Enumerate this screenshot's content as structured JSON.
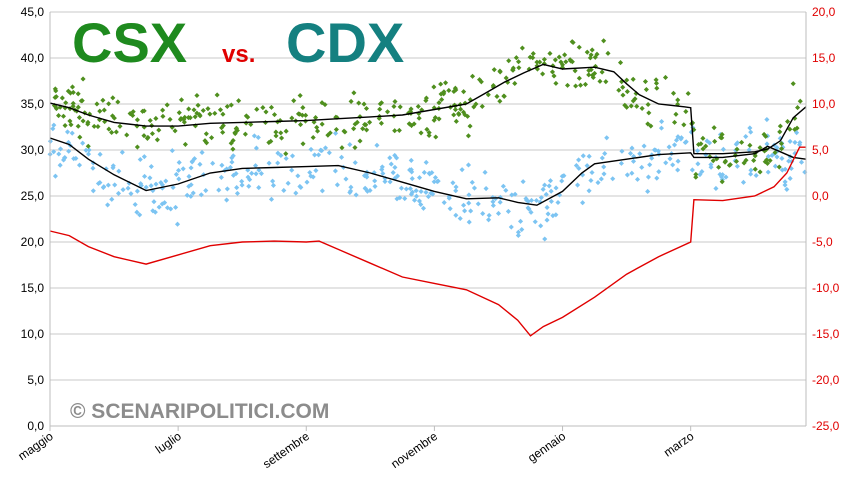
{
  "chart_data": {
    "type": "scatter",
    "title_parts": {
      "csx": "CSX",
      "vs": "vs.",
      "cdx": "CDX"
    },
    "watermark": "© SCENARIPOLITICI.COM",
    "x_ticks": [
      "maggio",
      "luglio",
      "settembre",
      "novembre",
      "gennaio",
      "marzo"
    ],
    "y_left": {
      "min": 0,
      "max": 45,
      "step": 5,
      "ticks": [
        "0,0",
        "5,0",
        "10,0",
        "15,0",
        "20,0",
        "25,0",
        "30,0",
        "35,0",
        "40,0",
        "45,0"
      ]
    },
    "y_right": {
      "min": -25,
      "max": 20,
      "step": 5,
      "ticks": [
        "-25,0",
        "-20,0",
        "-15,0",
        "-10,0",
        "-5,0",
        "0,0",
        "5,0",
        "10,0",
        "15,0",
        "20,0"
      ]
    },
    "grid": true,
    "legend": "none",
    "colors": {
      "csx": "#4f8f1e",
      "cdx": "#7cc4f2",
      "trend": "#000000",
      "diff": "#e00000",
      "grid": "#c8c8c8"
    },
    "x_range": [
      0,
      11.8
    ],
    "series": [
      {
        "kind": "trend",
        "axis": "left",
        "points": [
          [
            0,
            35.1
          ],
          [
            0.3,
            34.6
          ],
          [
            0.6,
            33.8
          ],
          [
            1.0,
            33.0
          ],
          [
            1.5,
            32.6
          ],
          [
            2.0,
            32.6
          ],
          [
            2.5,
            32.9
          ],
          [
            3.0,
            33.0
          ],
          [
            3.5,
            33.1
          ],
          [
            4.0,
            33.2
          ],
          [
            4.5,
            33.4
          ],
          [
            5.0,
            33.6
          ],
          [
            5.5,
            33.8
          ],
          [
            6.0,
            34.4
          ],
          [
            6.5,
            35.0
          ],
          [
            6.8,
            36.2
          ],
          [
            7.1,
            37.4
          ],
          [
            7.4,
            38.4
          ],
          [
            7.7,
            39.3
          ],
          [
            8.0,
            38.8
          ],
          [
            8.5,
            39.0
          ],
          [
            8.8,
            38.5
          ],
          [
            9.0,
            37.2
          ],
          [
            9.2,
            36.0
          ],
          [
            9.5,
            35.0
          ],
          [
            9.9,
            34.7
          ],
          [
            10.0,
            34.6
          ],
          [
            10.05,
            29.6
          ],
          [
            10.5,
            29.6
          ],
          [
            11.0,
            29.8
          ],
          [
            11.2,
            30.1
          ],
          [
            11.4,
            31.0
          ],
          [
            11.6,
            33.5
          ],
          [
            11.8,
            34.7
          ]
        ]
      },
      {
        "kind": "trend",
        "axis": "left",
        "points": [
          [
            0,
            31.3
          ],
          [
            0.3,
            30.6
          ],
          [
            0.6,
            29.0
          ],
          [
            1.0,
            27.3
          ],
          [
            1.5,
            25.6
          ],
          [
            2.0,
            26.3
          ],
          [
            2.5,
            27.5
          ],
          [
            3.0,
            28.0
          ],
          [
            3.5,
            28.1
          ],
          [
            4.0,
            28.2
          ],
          [
            4.5,
            28.3
          ],
          [
            5.0,
            27.5
          ],
          [
            5.5,
            26.5
          ],
          [
            6.0,
            25.5
          ],
          [
            6.5,
            24.7
          ],
          [
            7.0,
            24.8
          ],
          [
            7.3,
            24.3
          ],
          [
            7.6,
            24.0
          ],
          [
            8.0,
            25.5
          ],
          [
            8.3,
            27.5
          ],
          [
            8.5,
            28.5
          ],
          [
            9.0,
            29.0
          ],
          [
            9.5,
            29.5
          ],
          [
            10.0,
            29.7
          ],
          [
            10.05,
            29.2
          ],
          [
            10.5,
            29.2
          ],
          [
            11.0,
            29.6
          ],
          [
            11.2,
            30.4
          ],
          [
            11.4,
            29.8
          ],
          [
            11.6,
            29.2
          ],
          [
            11.8,
            29.0
          ]
        ]
      },
      {
        "kind": "diff",
        "axis": "right",
        "points": [
          [
            0,
            -3.8
          ],
          [
            0.3,
            -4.3
          ],
          [
            0.6,
            -5.5
          ],
          [
            1.0,
            -6.6
          ],
          [
            1.5,
            -7.4
          ],
          [
            2.0,
            -6.4
          ],
          [
            2.5,
            -5.4
          ],
          [
            3.0,
            -5.0
          ],
          [
            3.5,
            -4.9
          ],
          [
            4.0,
            -5.0
          ],
          [
            4.2,
            -4.9
          ],
          [
            4.5,
            -5.8
          ],
          [
            5.0,
            -7.3
          ],
          [
            5.5,
            -8.8
          ],
          [
            6.0,
            -9.5
          ],
          [
            6.5,
            -10.2
          ],
          [
            7.0,
            -11.8
          ],
          [
            7.3,
            -13.5
          ],
          [
            7.5,
            -15.2
          ],
          [
            7.7,
            -14.2
          ],
          [
            8.0,
            -13.2
          ],
          [
            8.5,
            -11.0
          ],
          [
            9.0,
            -8.5
          ],
          [
            9.5,
            -6.6
          ],
          [
            10.0,
            -5.0
          ],
          [
            10.05,
            -0.4
          ],
          [
            10.5,
            -0.5
          ],
          [
            11.0,
            0.0
          ],
          [
            11.3,
            1.0
          ],
          [
            11.5,
            2.5
          ],
          [
            11.7,
            5.3
          ],
          [
            11.8,
            5.3
          ]
        ]
      }
    ]
  }
}
